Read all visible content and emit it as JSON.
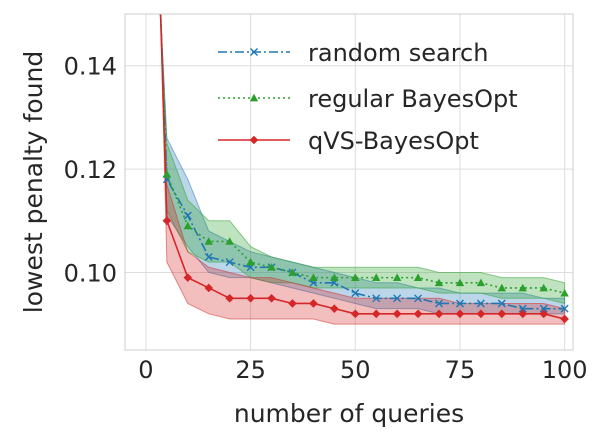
{
  "chart_data": {
    "type": "line",
    "title": "",
    "xlabel": "number of queries",
    "ylabel": "lowest penalty found",
    "xlim": [
      -5,
      102
    ],
    "ylim": [
      0.085,
      0.15
    ],
    "xticks": [
      0,
      25,
      50,
      75,
      100
    ],
    "yticks": [
      0.1,
      0.12,
      0.14
    ],
    "xtick_labels": [
      "0",
      "25",
      "50",
      "75",
      "100"
    ],
    "ytick_labels": [
      "0.10",
      "0.12",
      "0.14"
    ],
    "grid": true,
    "legend_position": "top-right",
    "series": [
      {
        "name": "random search",
        "color": "#1f77b4",
        "linestyle": "dashdot",
        "marker": "x",
        "x": [
          3.5,
          5,
          10,
          15,
          20,
          25,
          30,
          35,
          40,
          45,
          50,
          55,
          60,
          65,
          70,
          75,
          80,
          85,
          90,
          95,
          100
        ],
        "y": [
          0.15,
          0.118,
          0.111,
          0.103,
          0.102,
          0.101,
          0.101,
          0.1,
          0.098,
          0.098,
          0.096,
          0.095,
          0.095,
          0.095,
          0.094,
          0.094,
          0.094,
          0.094,
          0.093,
          0.093,
          0.093
        ],
        "lower": [
          0.15,
          0.111,
          0.105,
          0.1,
          0.099,
          0.099,
          0.098,
          0.097,
          0.096,
          0.095,
          0.094,
          0.093,
          0.093,
          0.093,
          0.092,
          0.092,
          0.092,
          0.092,
          0.092,
          0.092,
          0.092
        ],
        "upper": [
          0.15,
          0.126,
          0.118,
          0.108,
          0.106,
          0.104,
          0.103,
          0.102,
          0.101,
          0.1,
          0.099,
          0.098,
          0.098,
          0.097,
          0.097,
          0.096,
          0.096,
          0.096,
          0.096,
          0.095,
          0.095
        ]
      },
      {
        "name": "regular BayesOpt",
        "color": "#2ca02c",
        "linestyle": "dotted",
        "marker": "^",
        "x": [
          3.5,
          5,
          10,
          15,
          20,
          25,
          30,
          35,
          40,
          45,
          50,
          55,
          60,
          65,
          70,
          75,
          80,
          85,
          90,
          95,
          100
        ],
        "y": [
          0.15,
          0.119,
          0.109,
          0.106,
          0.106,
          0.102,
          0.101,
          0.1,
          0.099,
          0.099,
          0.099,
          0.099,
          0.099,
          0.099,
          0.098,
          0.098,
          0.098,
          0.097,
          0.097,
          0.097,
          0.096
        ],
        "lower": [
          0.15,
          0.112,
          0.104,
          0.102,
          0.102,
          0.099,
          0.098,
          0.098,
          0.097,
          0.097,
          0.097,
          0.097,
          0.097,
          0.097,
          0.096,
          0.096,
          0.096,
          0.095,
          0.095,
          0.095,
          0.094
        ],
        "upper": [
          0.15,
          0.125,
          0.114,
          0.11,
          0.11,
          0.105,
          0.103,
          0.102,
          0.101,
          0.101,
          0.101,
          0.101,
          0.101,
          0.101,
          0.1,
          0.1,
          0.1,
          0.099,
          0.099,
          0.099,
          0.098
        ]
      },
      {
        "name": "qVS-BayesOpt",
        "color": "#d62728",
        "linestyle": "solid",
        "marker": "D",
        "x": [
          3.5,
          5,
          10,
          15,
          20,
          25,
          30,
          35,
          40,
          45,
          50,
          55,
          60,
          65,
          70,
          75,
          80,
          85,
          90,
          95,
          100
        ],
        "y": [
          0.15,
          0.11,
          0.099,
          0.097,
          0.095,
          0.095,
          0.095,
          0.094,
          0.094,
          0.093,
          0.092,
          0.092,
          0.092,
          0.092,
          0.092,
          0.092,
          0.092,
          0.092,
          0.092,
          0.092,
          0.091
        ],
        "lower": [
          0.15,
          0.102,
          0.094,
          0.092,
          0.091,
          0.091,
          0.091,
          0.091,
          0.091,
          0.09,
          0.09,
          0.09,
          0.09,
          0.09,
          0.09,
          0.09,
          0.09,
          0.09,
          0.09,
          0.09,
          0.09
        ],
        "upper": [
          0.15,
          0.117,
          0.104,
          0.101,
          0.1,
          0.099,
          0.099,
          0.098,
          0.097,
          0.096,
          0.095,
          0.095,
          0.095,
          0.095,
          0.095,
          0.094,
          0.094,
          0.094,
          0.094,
          0.094,
          0.093
        ]
      }
    ]
  }
}
